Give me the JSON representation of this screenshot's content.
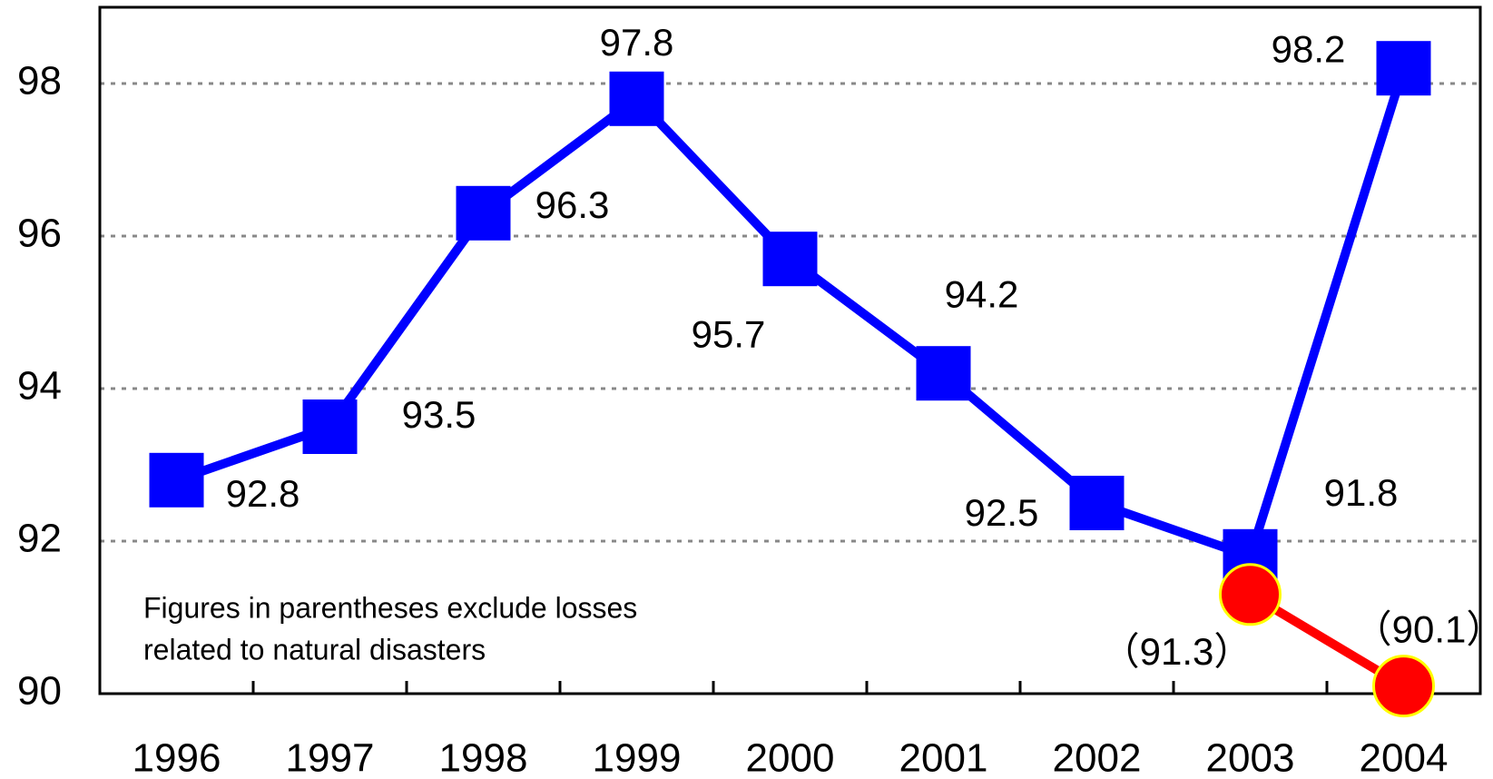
{
  "chart_data": {
    "type": "line",
    "categories": [
      "1996",
      "1997",
      "1998",
      "1999",
      "2000",
      "2001",
      "2002",
      "2003",
      "2004"
    ],
    "series": [
      {
        "color": "#0000ff",
        "marker": "square",
        "values": [
          92.8,
          93.5,
          96.3,
          97.8,
          95.7,
          94.2,
          92.5,
          91.8,
          98.2
        ]
      },
      {
        "color": "#ff0000",
        "marker": "circle",
        "marker_edge": "#ffff00",
        "values": [
          null,
          null,
          null,
          null,
          null,
          null,
          null,
          91.3,
          90.1
        ],
        "value_labels": [
          null,
          null,
          null,
          null,
          null,
          null,
          null,
          "（91.3）",
          "（90.1）"
        ]
      }
    ],
    "ylim": [
      90,
      99
    ],
    "yticks": [
      90,
      92,
      94,
      96,
      98
    ],
    "grid": true,
    "note": [
      "Figures in parentheses exclude losses",
      "related to natural disasters"
    ]
  }
}
